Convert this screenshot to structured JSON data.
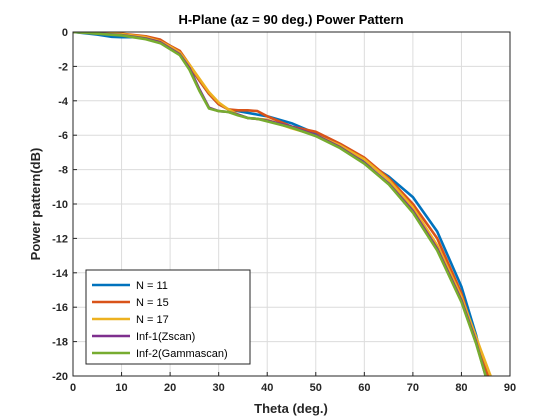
{
  "chart_data": {
    "type": "line",
    "title": "H-Plane (az = 90 deg.) Power Pattern",
    "xlabel": "Theta (deg.)",
    "ylabel": "Power pattern(dB)",
    "xlim": [
      0,
      90
    ],
    "ylim": [
      -20,
      0
    ],
    "xticks": [
      0,
      10,
      20,
      30,
      40,
      50,
      60,
      70,
      80,
      90
    ],
    "yticks": [
      0,
      -2,
      -4,
      -6,
      -8,
      -10,
      -12,
      -14,
      -16,
      -18,
      -20
    ],
    "grid": true,
    "legend_position": "bottom-left",
    "series": [
      {
        "name": "N = 11",
        "color": "#0072BD",
        "x": [
          0,
          5,
          8,
          10,
          12,
          15,
          18,
          20,
          22,
          24,
          26,
          28,
          30,
          32,
          34,
          36,
          38,
          40,
          45,
          50,
          55,
          60,
          65,
          70,
          75,
          80,
          83,
          85
        ],
        "y": [
          0,
          -0.15,
          -0.28,
          -0.3,
          -0.3,
          -0.32,
          -0.5,
          -0.8,
          -1.2,
          -2.0,
          -2.8,
          -3.6,
          -4.2,
          -4.5,
          -4.6,
          -4.7,
          -4.8,
          -4.9,
          -5.3,
          -5.9,
          -6.6,
          -7.5,
          -8.4,
          -9.6,
          -11.6,
          -14.8,
          -17.6,
          -20
        ]
      },
      {
        "name": "N = 15",
        "color": "#D95319",
        "x": [
          0,
          5,
          10,
          15,
          18,
          20,
          22,
          24,
          26,
          28,
          30,
          32,
          34,
          36,
          38,
          40,
          45,
          50,
          55,
          60,
          65,
          70,
          75,
          80,
          83,
          85.5
        ],
        "y": [
          0,
          -0.05,
          -0.1,
          -0.25,
          -0.45,
          -0.8,
          -1.1,
          -1.9,
          -2.8,
          -3.6,
          -4.2,
          -4.5,
          -4.55,
          -4.55,
          -4.6,
          -4.9,
          -5.5,
          -5.8,
          -6.5,
          -7.3,
          -8.5,
          -10.0,
          -12.0,
          -15.2,
          -18.0,
          -20
        ]
      },
      {
        "name": "N = 17",
        "color": "#EDB120",
        "x": [
          0,
          5,
          10,
          15,
          18,
          20,
          22,
          24,
          26,
          28,
          30,
          32,
          34,
          36,
          38,
          40,
          45,
          50,
          55,
          60,
          65,
          70,
          75,
          80,
          84,
          86
        ],
        "y": [
          0,
          -0.05,
          -0.12,
          -0.3,
          -0.55,
          -0.85,
          -1.2,
          -1.9,
          -2.7,
          -3.5,
          -4.1,
          -4.5,
          -4.8,
          -5.0,
          -5.05,
          -5.1,
          -5.6,
          -6.0,
          -6.6,
          -7.4,
          -8.6,
          -10.2,
          -12.4,
          -15.4,
          -18.5,
          -20
        ]
      },
      {
        "name": "Inf-1(Zscan)",
        "color": "#7E2F8E",
        "x": [
          0,
          5,
          10,
          15,
          18,
          20,
          22,
          24,
          26,
          28,
          30,
          32,
          34,
          36,
          38,
          40,
          45,
          50,
          55,
          60,
          65,
          70,
          75,
          80,
          83,
          85
        ],
        "y": [
          0,
          -0.08,
          -0.18,
          -0.38,
          -0.6,
          -0.95,
          -1.3,
          -2.1,
          -3.3,
          -4.4,
          -4.6,
          -4.65,
          -4.8,
          -5.0,
          -5.05,
          -5.15,
          -5.5,
          -6.0,
          -6.7,
          -7.6,
          -8.8,
          -10.4,
          -12.6,
          -15.6,
          -18.0,
          -20
        ]
      },
      {
        "name": "Inf-2(Gammascan)",
        "color": "#77AC30",
        "x": [
          0,
          5,
          10,
          15,
          18,
          20,
          22,
          24,
          26,
          28,
          30,
          32,
          34,
          36,
          38,
          40,
          45,
          50,
          55,
          60,
          65,
          70,
          75,
          80,
          83,
          85
        ],
        "y": [
          0,
          -0.1,
          -0.2,
          -0.42,
          -0.65,
          -1.0,
          -1.35,
          -2.2,
          -3.4,
          -4.45,
          -4.6,
          -4.65,
          -4.85,
          -5.0,
          -5.05,
          -5.2,
          -5.55,
          -6.05,
          -6.75,
          -7.65,
          -8.85,
          -10.5,
          -12.7,
          -15.7,
          -18.1,
          -20
        ]
      }
    ]
  }
}
